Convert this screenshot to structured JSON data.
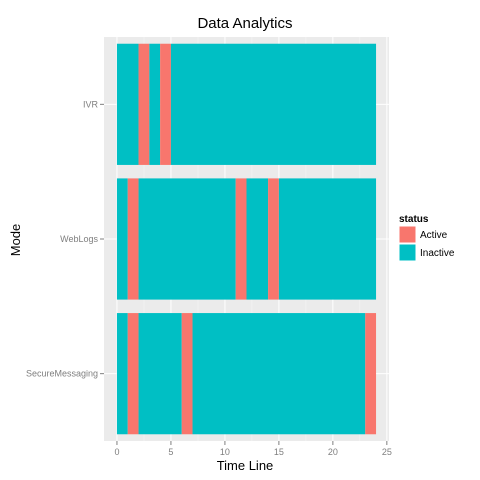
{
  "chart_data": {
    "type": "bar",
    "orientation": "horizontal",
    "title": "Data Analytics",
    "xlabel": "Time Line",
    "ylabel": "Mode",
    "xlim": [
      -1.2,
      25.2
    ],
    "x_ticks": [
      0,
      5,
      10,
      15,
      20,
      25
    ],
    "categories": [
      "IVR",
      "WebLogs",
      "SecureMessaging"
    ],
    "grid": true,
    "legend": {
      "title": "status",
      "position": "right",
      "entries": [
        {
          "name": "Active",
          "color": "#F8766D"
        },
        {
          "name": "Inactive",
          "color": "#00BFC4"
        }
      ]
    },
    "series": [
      {
        "category": "IVR",
        "segments": [
          {
            "status": "Inactive",
            "start": 0,
            "end": 2
          },
          {
            "status": "Active",
            "start": 2,
            "end": 3
          },
          {
            "status": "Inactive",
            "start": 3,
            "end": 4
          },
          {
            "status": "Active",
            "start": 4,
            "end": 5
          },
          {
            "status": "Inactive",
            "start": 5,
            "end": 24
          }
        ]
      },
      {
        "category": "WebLogs",
        "segments": [
          {
            "status": "Inactive",
            "start": 0,
            "end": 1
          },
          {
            "status": "Active",
            "start": 1,
            "end": 2
          },
          {
            "status": "Inactive",
            "start": 2,
            "end": 11
          },
          {
            "status": "Active",
            "start": 11,
            "end": 12
          },
          {
            "status": "Inactive",
            "start": 12,
            "end": 14
          },
          {
            "status": "Active",
            "start": 14,
            "end": 15
          },
          {
            "status": "Inactive",
            "start": 15,
            "end": 24
          }
        ]
      },
      {
        "category": "SecureMessaging",
        "segments": [
          {
            "status": "Inactive",
            "start": 0,
            "end": 1
          },
          {
            "status": "Active",
            "start": 1,
            "end": 2
          },
          {
            "status": "Inactive",
            "start": 2,
            "end": 6
          },
          {
            "status": "Active",
            "start": 6,
            "end": 7
          },
          {
            "status": "Inactive",
            "start": 7,
            "end": 23
          },
          {
            "status": "Active",
            "start": 23,
            "end": 24
          }
        ]
      }
    ]
  }
}
